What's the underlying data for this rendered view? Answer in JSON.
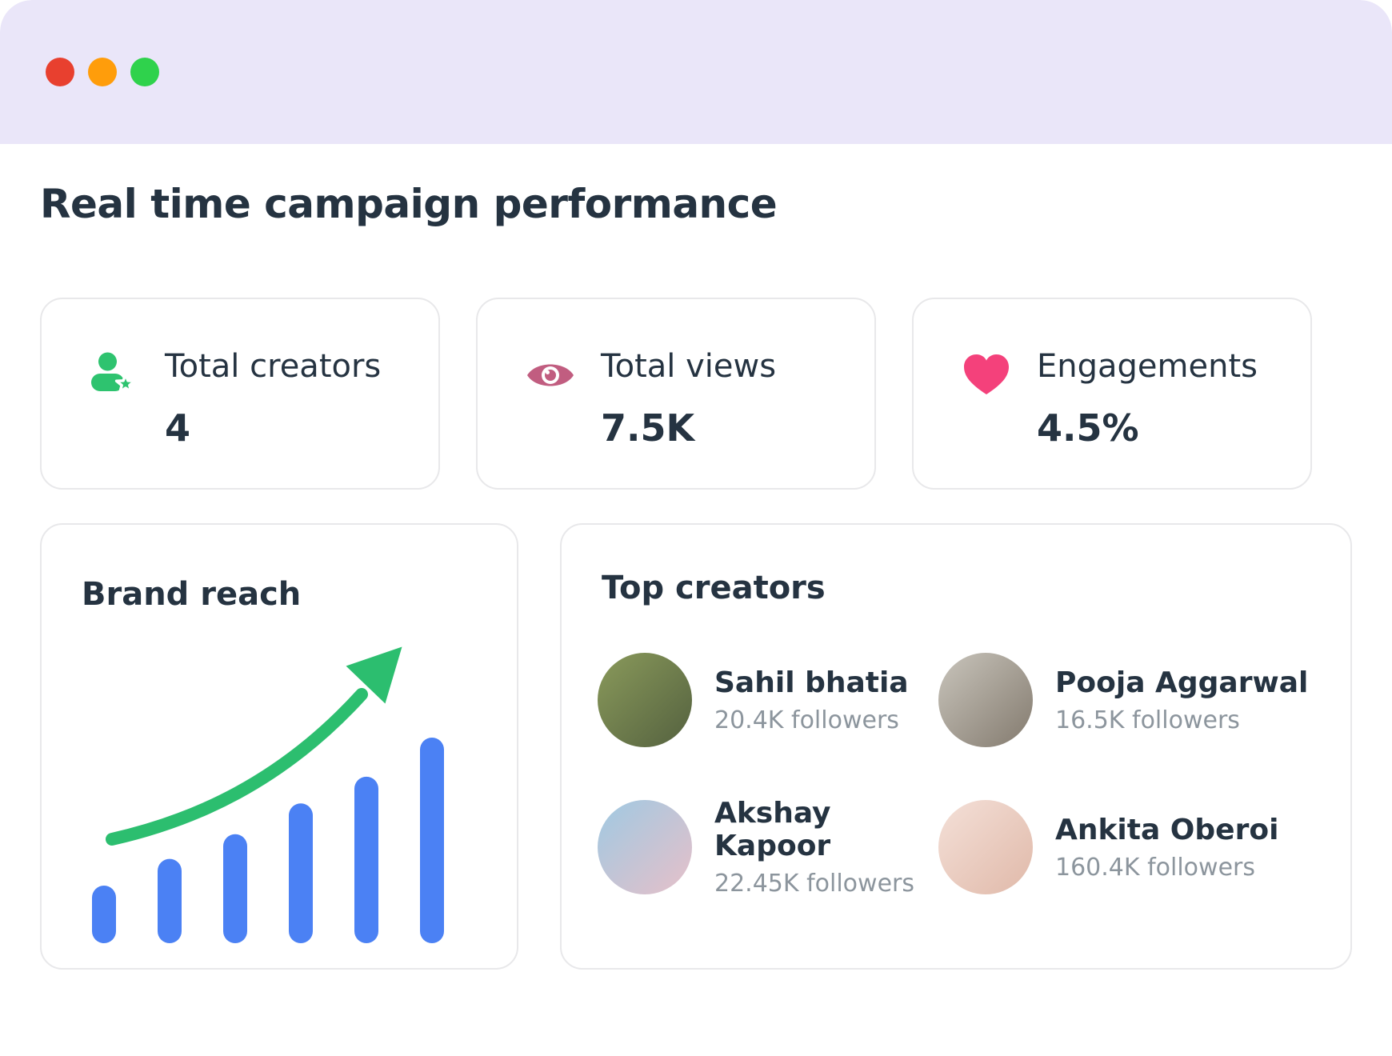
{
  "window": {
    "header_bg": "#EAE6F9",
    "traffic_light_colors": {
      "red": "#E8402F",
      "yellow": "#FF9D0B",
      "green": "#2FD24C"
    }
  },
  "page_title": "Real time campaign performance",
  "stats": [
    {
      "label": "Total creators",
      "value": "4",
      "icon": "person-star-icon",
      "icon_color": "#2EC36F"
    },
    {
      "label": "Total views",
      "value": "7.5K",
      "icon": "eye-icon",
      "icon_color": "#C15D80"
    },
    {
      "label": "Engagements",
      "value": "4.5%",
      "icon": "heart-icon",
      "icon_color": "#F4417B"
    }
  ],
  "brand_reach": {
    "title": "Brand reach"
  },
  "chart_data": {
    "type": "bar",
    "title": "Brand reach",
    "categories": [
      "",
      "",
      "",
      "",
      "",
      ""
    ],
    "values": [
      28,
      41,
      53,
      68,
      81,
      100
    ],
    "xlabel": "",
    "ylabel": "",
    "axes_visible": false,
    "ylim": [
      0,
      100
    ],
    "bar_color": "#4B81F4",
    "annotation": "upward-trend-arrow",
    "annotation_color": "#2CBE6F"
  },
  "top_creators": {
    "title": "Top creators",
    "items": [
      {
        "name": "Sahil bhatia",
        "followers": "20.4K followers",
        "avatar_colors": [
          "#8a9a5b",
          "#54613f"
        ]
      },
      {
        "name": "Pooja Aggarwal",
        "followers": "16.5K followers",
        "avatar_colors": [
          "#c9c5bc",
          "#837a6e"
        ]
      },
      {
        "name": "Akshay Kapoor",
        "followers": "22.45K followers",
        "avatar_colors": [
          "#9fc9e2",
          "#e7c0c9"
        ]
      },
      {
        "name": "Ankita Oberoi",
        "followers": "160.4K followers",
        "avatar_colors": [
          "#f4e0d8",
          "#e0b9a9"
        ]
      }
    ]
  },
  "colors": {
    "text_dark": "#253341",
    "text_gray": "#8C959D",
    "card_border": "#E8E8EA",
    "bar_blue": "#4B81F4",
    "arrow_green": "#2CBE6F"
  }
}
